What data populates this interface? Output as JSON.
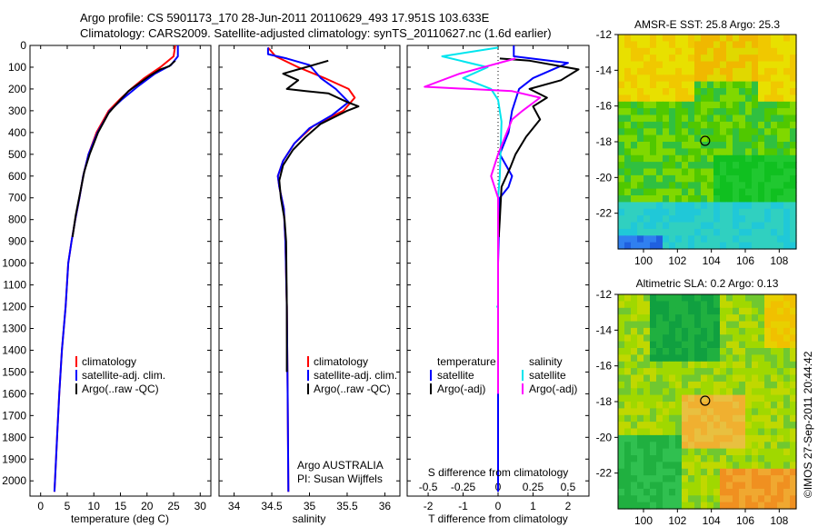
{
  "header": {
    "line1": "Argo profile: CS 5901173_170 28-Jun-2011 20110629_493 17.951S 103.633E",
    "line2": "Climatology: CARS2009. Satellite-adjusted climatology: synTS_20110627.nc (1.6d earlier)"
  },
  "credit": "©IMOS 27-Sep-2011 20:44:42",
  "colors": {
    "climatology": "#ff0000",
    "satellite": "#0000ff",
    "argo": "#000000",
    "salinity_satellite": "#00e5ee",
    "salinity_argo": "#ff00ff"
  },
  "panels": {
    "temperature": {
      "xlabel": "temperature (deg C)",
      "legend": [
        "climatology",
        "satellite-adj. clim.",
        "Argo(..raw -QC)"
      ]
    },
    "salinity": {
      "xlabel": "salinity",
      "legend": [
        "climatology",
        "satellite-adj. clim.",
        "Argo(..raw -QC)"
      ],
      "note1": "Argo AUSTRALIA",
      "note2": "PI: Susan Wijffels"
    },
    "difference": {
      "top_axis_label": "S difference from climatology",
      "xlabel": "T difference from climatology",
      "legend_temperature_title": "temperature",
      "legend_salinity_title": "salinity",
      "legend_temperature": [
        "satellite",
        "Argo(-adj)"
      ],
      "legend_salinity": [
        "satellite",
        "Argo(-adj)"
      ]
    },
    "sst_map": {
      "title": "AMSR-E SST: 25.8 Argo: 25.3"
    },
    "sla_map": {
      "title": "Altimetric SLA: 0.2 Argo: 0.13"
    }
  },
  "chart_data": [
    {
      "type": "line",
      "title": "",
      "xlabel": "temperature (deg C)",
      "ylabel": "",
      "xlim": [
        -2,
        32
      ],
      "ylim": [
        2070,
        0
      ],
      "xticks": [
        0,
        5,
        10,
        15,
        20,
        25,
        30
      ],
      "yticks": [
        0,
        100,
        200,
        300,
        400,
        500,
        600,
        700,
        800,
        900,
        1000,
        1100,
        1200,
        1300,
        1400,
        1500,
        1600,
        1700,
        1800,
        1900,
        2000
      ],
      "series": [
        {
          "name": "climatology",
          "color": "#ff0000",
          "points": [
            [
              25.3,
              0
            ],
            [
              25.0,
              50
            ],
            [
              22.5,
              100
            ],
            [
              19.5,
              150
            ],
            [
              17.0,
              200
            ],
            [
              14.8,
              250
            ],
            [
              12.8,
              300
            ],
            [
              10.5,
              400
            ],
            [
              9.0,
              500
            ],
            [
              8.0,
              600
            ],
            [
              7.3,
              700
            ],
            [
              6.5,
              800
            ],
            [
              5.8,
              900
            ],
            [
              5.2,
              1000
            ],
            [
              4.7,
              1200
            ],
            [
              4.0,
              1400
            ],
            [
              3.5,
              1600
            ],
            [
              3.1,
              1800
            ],
            [
              2.7,
              2000
            ],
            [
              2.6,
              2050
            ]
          ]
        },
        {
          "name": "satellite-adj. clim.",
          "color": "#0000ff",
          "points": [
            [
              25.8,
              0
            ],
            [
              25.8,
              50
            ],
            [
              24.5,
              90
            ],
            [
              21.5,
              130
            ],
            [
              18.2,
              190
            ],
            [
              15.2,
              250
            ],
            [
              13.0,
              300
            ],
            [
              10.7,
              400
            ],
            [
              9.0,
              500
            ],
            [
              8.0,
              600
            ],
            [
              7.3,
              700
            ],
            [
              6.5,
              800
            ],
            [
              5.8,
              900
            ],
            [
              5.2,
              1000
            ],
            [
              4.7,
              1200
            ],
            [
              4.0,
              1400
            ],
            [
              3.5,
              1600
            ],
            [
              3.1,
              1800
            ],
            [
              2.7,
              2000
            ],
            [
              2.6,
              2050
            ]
          ]
        },
        {
          "name": "Argo(..raw -QC)",
          "color": "#000000",
          "points": [
            [
              25.3,
              70
            ],
            [
              24.2,
              95
            ],
            [
              22.5,
              110
            ],
            [
              20.5,
              140
            ],
            [
              18.8,
              170
            ],
            [
              16.5,
              210
            ],
            [
              14.6,
              260
            ],
            [
              12.8,
              310
            ],
            [
              10.8,
              400
            ],
            [
              9.2,
              500
            ],
            [
              8.2,
              580
            ],
            [
              7.4,
              680
            ],
            [
              6.6,
              780
            ],
            [
              6.0,
              880
            ]
          ]
        }
      ]
    },
    {
      "type": "line",
      "title": "",
      "xlabel": "salinity",
      "ylabel": "",
      "xlim": [
        33.8,
        36.2
      ],
      "ylim": [
        2070,
        0
      ],
      "xticks": [
        34,
        34.5,
        35,
        35.5,
        36
      ],
      "series": [
        {
          "name": "climatology",
          "color": "#ff0000",
          "points": [
            [
              34.45,
              10
            ],
            [
              34.55,
              50
            ],
            [
              34.85,
              100
            ],
            [
              35.2,
              150
            ],
            [
              35.52,
              200
            ],
            [
              35.6,
              240
            ],
            [
              35.45,
              300
            ],
            [
              35.05,
              370
            ],
            [
              34.8,
              450
            ],
            [
              34.65,
              530
            ],
            [
              34.58,
              600
            ],
            [
              34.6,
              650
            ],
            [
              34.66,
              750
            ],
            [
              34.68,
              900
            ],
            [
              34.7,
              1200
            ],
            [
              34.71,
              1600
            ],
            [
              34.72,
              2050
            ]
          ]
        },
        {
          "name": "satellite-adj. clim.",
          "color": "#0000ff",
          "points": [
            [
              34.45,
              10
            ],
            [
              34.45,
              40
            ],
            [
              34.7,
              60
            ],
            [
              35.0,
              90
            ],
            [
              35.15,
              150
            ],
            [
              35.35,
              200
            ],
            [
              35.52,
              260
            ],
            [
              35.3,
              320
            ],
            [
              35.0,
              380
            ],
            [
              34.8,
              450
            ],
            [
              34.65,
              530
            ],
            [
              34.58,
              600
            ],
            [
              34.6,
              650
            ],
            [
              34.66,
              750
            ],
            [
              34.68,
              900
            ],
            [
              34.7,
              1200
            ],
            [
              34.71,
              1600
            ],
            [
              34.72,
              2050
            ]
          ]
        },
        {
          "name": "Argo(..raw -QC)",
          "color": "#000000",
          "points": [
            [
              35.25,
              70
            ],
            [
              34.95,
              100
            ],
            [
              34.65,
              130
            ],
            [
              34.85,
              160
            ],
            [
              34.7,
              200
            ],
            [
              34.95,
              210
            ],
            [
              35.25,
              220
            ],
            [
              35.5,
              260
            ],
            [
              35.65,
              280
            ],
            [
              35.5,
              300
            ],
            [
              35.15,
              360
            ],
            [
              34.95,
              420
            ],
            [
              34.78,
              480
            ],
            [
              34.65,
              550
            ],
            [
              34.6,
              620
            ],
            [
              34.62,
              700
            ],
            [
              34.67,
              800
            ],
            [
              34.69,
              900
            ],
            [
              34.7,
              1200
            ],
            [
              34.7,
              1500
            ]
          ]
        }
      ]
    },
    {
      "type": "line",
      "title": "",
      "xlabel": "T difference from climatology",
      "ylabel": "",
      "xlim": [
        -2.6,
        2.6
      ],
      "ylim": [
        2070,
        0
      ],
      "xticks": [
        -2,
        -1,
        0,
        1,
        2
      ],
      "xticks_top": [
        "-0.5",
        "-0.25",
        "0",
        "0.25",
        "0.5"
      ],
      "series": [
        {
          "name": "temperature satellite",
          "color": "#0000ff",
          "points": [
            [
              0.45,
              0
            ],
            [
              0.45,
              50
            ],
            [
              2.0,
              80
            ],
            [
              1.0,
              150
            ],
            [
              0.6,
              200
            ],
            [
              0.4,
              300
            ],
            [
              0.3,
              400
            ],
            [
              0.05,
              500
            ],
            [
              0.4,
              600
            ],
            [
              0.3,
              650
            ],
            [
              0.05,
              700
            ],
            [
              0,
              1000
            ],
            [
              0,
              1500
            ],
            [
              0,
              2050
            ]
          ]
        },
        {
          "name": "temperature Argo(-adj)",
          "color": "#000000",
          "points": [
            [
              0.05,
              60
            ],
            [
              0.9,
              70
            ],
            [
              2.3,
              110
            ],
            [
              1.8,
              160
            ],
            [
              0.9,
              200
            ],
            [
              1.4,
              240
            ],
            [
              1.0,
              280
            ],
            [
              1.2,
              340
            ],
            [
              0.8,
              420
            ],
            [
              0.5,
              500
            ],
            [
              0.35,
              560
            ],
            [
              0.1,
              650
            ],
            [
              0.05,
              800
            ],
            [
              0.02,
              880
            ]
          ]
        },
        {
          "name": "salinity satellite",
          "color": "#00e5ee",
          "points": [
            [
              0,
              10
            ],
            [
              -1.6,
              50
            ],
            [
              -0.3,
              100
            ],
            [
              -1.0,
              150
            ],
            [
              -0.2,
              200
            ],
            [
              0,
              250
            ],
            [
              0.1,
              350
            ],
            [
              0.05,
              600
            ],
            [
              0,
              700
            ],
            [
              0,
              1000
            ],
            [
              0,
              1200
            ],
            [
              -0.05,
              1200
            ]
          ]
        },
        {
          "name": "salinity Argo(-adj)",
          "color": "#ff00ff",
          "points": [
            [
              0.5,
              60
            ],
            [
              -1.1,
              130
            ],
            [
              -2.1,
              190
            ],
            [
              0.4,
              210
            ],
            [
              1.2,
              240
            ],
            [
              0.7,
              300
            ],
            [
              0.4,
              340
            ],
            [
              0.2,
              420
            ],
            [
              0,
              500
            ],
            [
              -0.2,
              600
            ],
            [
              0,
              700
            ],
            [
              0,
              1000
            ],
            [
              0,
              1600
            ]
          ]
        }
      ]
    },
    {
      "type": "heatmap",
      "title": "AMSR-E SST: 25.8 Argo: 25.3",
      "xlabel": "",
      "ylabel": "",
      "xlim": [
        98.5,
        109
      ],
      "ylim": [
        -24,
        -12
      ],
      "xticks": [
        100,
        102,
        104,
        106,
        108
      ],
      "yticks": [
        -12,
        -14,
        -16,
        -18,
        -20,
        -22
      ],
      "argo_location": [
        103.633,
        -17.951
      ]
    },
    {
      "type": "heatmap",
      "title": "Altimetric SLA: 0.2 Argo: 0.13",
      "xlabel": "",
      "ylabel": "",
      "xlim": [
        98.5,
        109
      ],
      "ylim": [
        -24,
        -12
      ],
      "xticks": [
        100,
        102,
        104,
        106,
        108
      ],
      "yticks": [
        -12,
        -14,
        -16,
        -18,
        -20,
        -22
      ],
      "argo_location": [
        103.633,
        -17.951
      ]
    }
  ]
}
